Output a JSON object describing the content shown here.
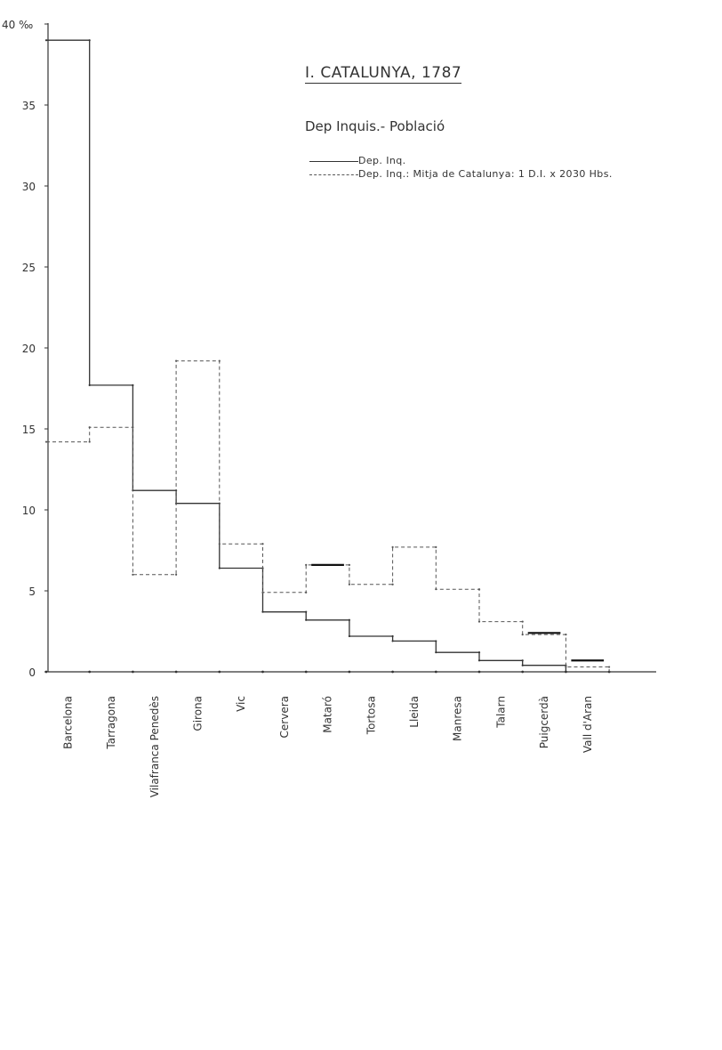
{
  "chart_data": {
    "type": "step",
    "title": "I. CATALUNYA, 1787",
    "subtitle": "Dep Inquis.- Població",
    "y_top_label": "40 ‰",
    "ylim": [
      0,
      40
    ],
    "yticks": [
      0,
      5,
      10,
      15,
      20,
      25,
      30,
      35
    ],
    "grid": false,
    "legend_position": "top-right",
    "categories": [
      "Barcelona",
      "Tarragona",
      "Vilafranca Penedès",
      "Girona",
      "Vic",
      "Cervera",
      "Mataró",
      "Tortosa",
      "Lleida",
      "Manresa",
      "Talarn",
      "Puigcerdà",
      "Vall d'Aran"
    ],
    "series": [
      {
        "name": "Dep. Inq.",
        "style": "solid",
        "values": [
          39.0,
          17.7,
          11.2,
          10.4,
          6.4,
          3.7,
          3.2,
          2.2,
          1.9,
          1.2,
          0.7,
          0.4,
          null
        ]
      },
      {
        "name": "Dep. Inq.: Mitja de Catalunya: 1 D.I. x 2030 Hbs.",
        "style": "dashed",
        "values": [
          14.2,
          15.1,
          6.0,
          19.2,
          7.9,
          4.9,
          6.6,
          5.4,
          7.7,
          5.1,
          3.1,
          2.3,
          0.3
        ]
      }
    ],
    "markers": [
      {
        "category": "Mataró",
        "value": 6.6
      },
      {
        "category": "Puigcerdà",
        "value": 2.4
      },
      {
        "category": "Vall d'Aran",
        "value": 0.7
      }
    ]
  },
  "colors": {
    "ink": "#333333",
    "dashed_ink": "#555555",
    "background": "#ffffff"
  }
}
